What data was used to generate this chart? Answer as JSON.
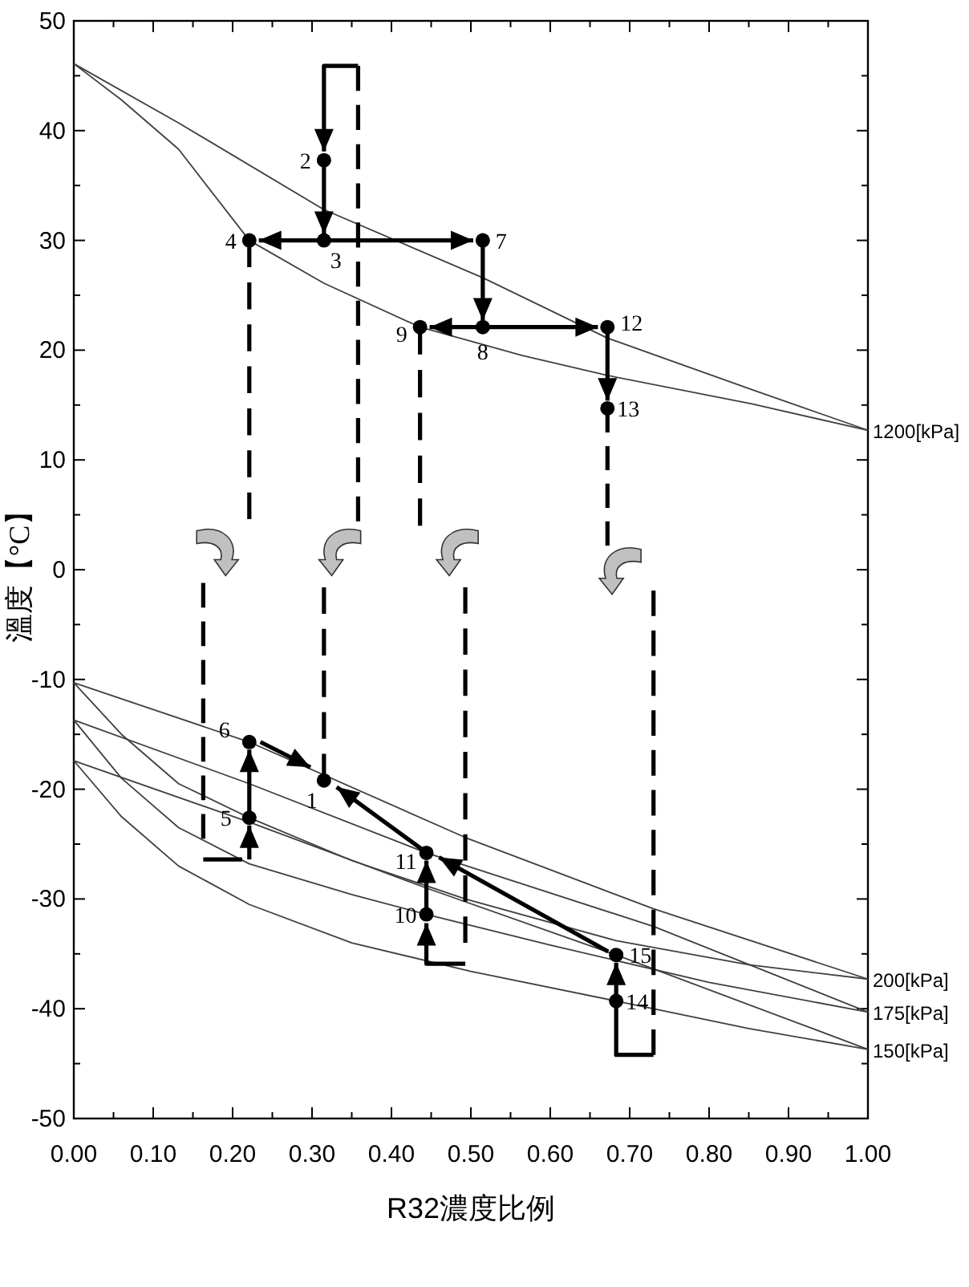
{
  "chart_data": {
    "type": "line",
    "xlabel": "R32濃度比例",
    "ylabel": "溫度【°C】",
    "xlim": [
      0,
      1
    ],
    "ylim": [
      -50,
      50
    ],
    "xticks": [
      {
        "value": 0,
        "label": "0.00"
      },
      {
        "value": 0.05,
        "label": null
      },
      {
        "value": 0.1,
        "label": "0.10"
      },
      {
        "value": 0.15,
        "label": null
      },
      {
        "value": 0.2,
        "label": "0.20"
      },
      {
        "value": 0.25,
        "label": null
      },
      {
        "value": 0.3,
        "label": "0.30"
      },
      {
        "value": 0.35,
        "label": null
      },
      {
        "value": 0.4,
        "label": "0.40"
      },
      {
        "value": 0.45,
        "label": null
      },
      {
        "value": 0.5,
        "label": "0.50"
      },
      {
        "value": 0.55,
        "label": null
      },
      {
        "value": 0.6,
        "label": "0.60"
      },
      {
        "value": 0.65,
        "label": null
      },
      {
        "value": 0.7,
        "label": "0.70"
      },
      {
        "value": 0.75,
        "label": null
      },
      {
        "value": 0.8,
        "label": "0.80"
      },
      {
        "value": 0.85,
        "label": null
      },
      {
        "value": 0.9,
        "label": "0.90"
      },
      {
        "value": 0.95,
        "label": null
      },
      {
        "value": 1,
        "label": "1.00"
      }
    ],
    "yticks": [
      -50,
      {
        "value": -45,
        "label": null
      },
      -40,
      {
        "value": -35,
        "label": null
      },
      -30,
      {
        "value": -25,
        "label": null
      },
      -20,
      {
        "value": -15,
        "label": null
      },
      -10,
      {
        "value": -5,
        "label": null
      },
      0,
      {
        "value": 5,
        "label": null
      },
      10,
      {
        "value": 15,
        "label": null
      },
      20,
      {
        "value": 25,
        "label": null
      },
      30,
      {
        "value": 35,
        "label": null
      },
      40,
      {
        "value": 45,
        "label": null
      },
      50
    ],
    "grid": false,
    "line_style": "solid",
    "annotations": [
      {
        "text": "1200[kPa]",
        "x": 1,
        "y": 12.7
      },
      {
        "text": "200[kPa]",
        "x": 1,
        "y": -37.3
      },
      {
        "text": "175[kPa]",
        "x": 1,
        "y": -40.3
      },
      {
        "text": "150[kPa]",
        "x": 1,
        "y": -43.7
      },
      {
        "text": "1",
        "x": 0.315,
        "y": -19.2
      },
      {
        "text": "2",
        "x": 0.315,
        "y": 37.3
      },
      {
        "text": "3",
        "x": 0.315,
        "y": 30
      },
      {
        "text": "4",
        "x": 0.221,
        "y": 30
      },
      {
        "text": "5",
        "x": 0.221,
        "y": -22.6
      },
      {
        "text": "6",
        "x": 0.221,
        "y": -15.7
      },
      {
        "text": "7",
        "x": 0.515,
        "y": 30
      },
      {
        "text": "8",
        "x": 0.515,
        "y": 22.1
      },
      {
        "text": "9",
        "x": 0.436,
        "y": 22.1
      },
      {
        "text": "10",
        "x": 0.444,
        "y": -31.4
      },
      {
        "text": "11",
        "x": 0.444,
        "y": -25.8
      },
      {
        "text": "12",
        "x": 0.672,
        "y": 22.1
      },
      {
        "text": "13",
        "x": 0.672,
        "y": 14.7
      },
      {
        "text": "14",
        "x": 0.683,
        "y": -39.3
      },
      {
        "text": "15",
        "x": 0.683,
        "y": -35.1
      }
    ],
    "series": [
      {
        "color": "#404040",
        "x": [
          0,
          0.132,
          0.315,
          0.515,
          0.672,
          0.854,
          1
        ],
        "values": [
          46.1,
          40.7,
          32.8,
          26.6,
          21.1,
          16.4,
          12.7
        ]
      },
      {
        "color": "#404040",
        "x": [
          0,
          0.06,
          0.132,
          0.221,
          0.315,
          0.436,
          0.565,
          0.672,
          0.854,
          1
        ],
        "values": [
          46.1,
          42.8,
          38.3,
          30.0,
          26.1,
          22.1,
          19.5,
          17.7,
          15.1,
          12.7
        ]
      },
      {
        "color": "#404040",
        "x": [
          0,
          0.221,
          0.493,
          0.73,
          1
        ],
        "values": [
          -10.3,
          -15.7,
          -24.4,
          -30.9,
          -37.3
        ]
      },
      {
        "color": "#404040",
        "x": [
          0,
          0.06,
          0.132,
          0.221,
          0.35,
          0.493,
          0.683,
          0.85,
          1
        ],
        "values": [
          -10.3,
          -15,
          -19.5,
          -22.6,
          -26.5,
          -30,
          -33.8,
          -36,
          -37.3
        ]
      },
      {
        "color": "#404040",
        "x": [
          0,
          0.221,
          0.444,
          0.73,
          1
        ],
        "values": [
          -13.7,
          -19.5,
          -25.8,
          -32.5,
          -40.3
        ]
      },
      {
        "color": "#404040",
        "x": [
          0,
          0.06,
          0.132,
          0.221,
          0.35,
          0.444,
          0.6,
          0.8,
          1
        ],
        "values": [
          -13.7,
          -19,
          -23.5,
          -26.8,
          -29.6,
          -31.4,
          -34.2,
          -37.6,
          -40.3
        ]
      },
      {
        "color": "#404040",
        "x": [
          0,
          0.221,
          0.444,
          0.683,
          1
        ],
        "values": [
          -17.4,
          -23,
          -29,
          -35.1,
          -43.7
        ]
      },
      {
        "color": "#404040",
        "x": [
          0,
          0.06,
          0.132,
          0.221,
          0.35,
          0.5,
          0.683,
          0.85,
          1
        ],
        "values": [
          -17.4,
          -22.5,
          -27,
          -30.5,
          -34,
          -36.6,
          -39.3,
          -41.8,
          -43.7
        ]
      },
      {
        "color": "#000000",
        "line_style": "dashed",
        "x": [
          0.221,
          0.221
        ],
        "values": [
          30,
          4.6
        ]
      },
      {
        "color": "#000000",
        "line_style": "dashed",
        "x": [
          0.358,
          0.358
        ],
        "values": [
          45.9,
          4.4
        ]
      },
      {
        "color": "#000000",
        "line_style": "dashed",
        "x": [
          0.436,
          0.436
        ],
        "values": [
          22.1,
          4
        ]
      },
      {
        "color": "#000000",
        "line_style": "dashed",
        "x": [
          0.672,
          0.672
        ],
        "values": [
          14.7,
          2.2
        ]
      },
      {
        "color": "#000000",
        "line_style": "dashed",
        "x": [
          0.163,
          0.163
        ],
        "values": [
          -1.2,
          -24.5
        ]
      },
      {
        "color": "#000000",
        "line_style": "dashed",
        "x": [
          0.315,
          0.315
        ],
        "values": [
          -1.6,
          -19.2
        ]
      },
      {
        "color": "#000000",
        "line_style": "dashed",
        "x": [
          0.493,
          0.493
        ],
        "values": [
          -1.6,
          -34
        ]
      },
      {
        "color": "#000000",
        "line_style": "dashed",
        "x": [
          0.73,
          0.73
        ],
        "values": [
          -1.9,
          -44.2
        ]
      },
      {
        "color": "#000000",
        "x": [
          0.163,
          0.212
        ],
        "values": [
          -26.4,
          -26.4
        ]
      },
      {
        "color": "#000000",
        "x": [
          0.73,
          0.683,
          0.683
        ],
        "values": [
          -44.2,
          -44.2,
          -39.3
        ]
      },
      {
        "type": "scatter",
        "color": "#000000",
        "marker": "circle",
        "x": [
          0.315,
          0.315,
          0.315,
          0.221,
          0.221,
          0.221,
          0.515,
          0.515,
          0.436,
          0.444,
          0.444,
          0.672,
          0.672,
          0.683,
          0.683
        ],
        "values": [
          -19.2,
          37.3,
          30,
          30,
          -22.6,
          -15.7,
          30,
          22.1,
          22.1,
          -31.4,
          -25.8,
          22.1,
          14.7,
          -39.3,
          -35.1
        ]
      }
    ]
  }
}
